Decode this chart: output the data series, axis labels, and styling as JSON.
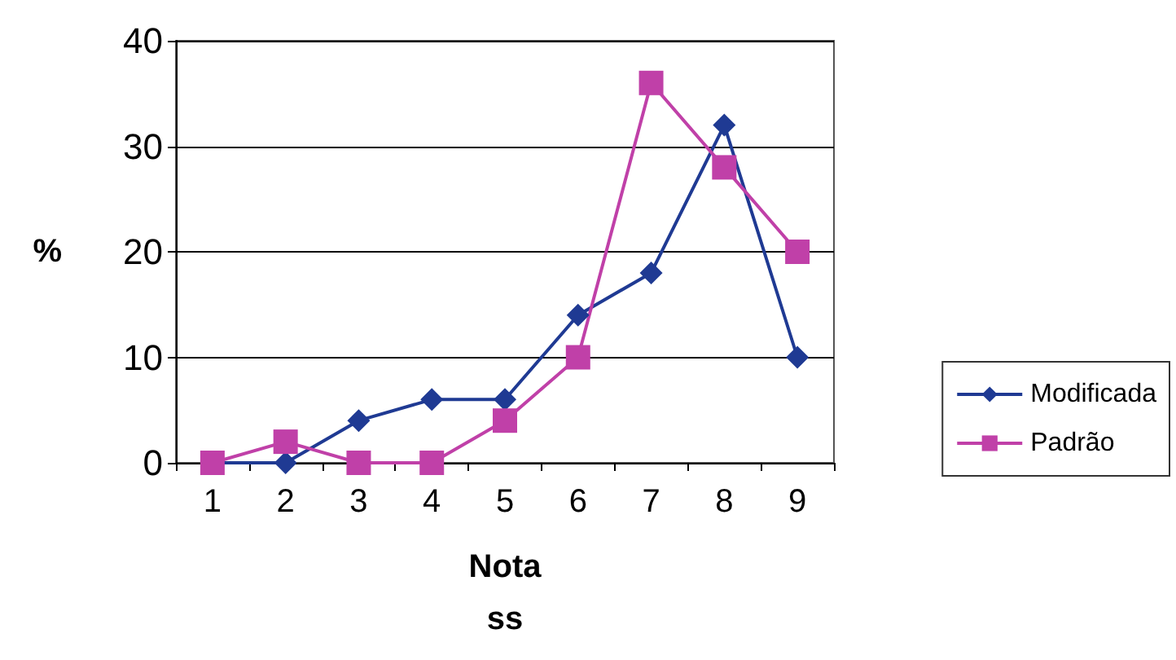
{
  "chart_data": {
    "type": "line",
    "xlabel": "Nota\nss",
    "ylabel": "%",
    "categories": [
      "1",
      "2",
      "3",
      "4",
      "5",
      "6",
      "7",
      "8",
      "9"
    ],
    "series": [
      {
        "name": "Modificada",
        "color": "#1f3a93",
        "marker": "diamond",
        "values": [
          0,
          0,
          4,
          6,
          6,
          14,
          18,
          32,
          10
        ]
      },
      {
        "name": "Padrão",
        "color": "#c040a8",
        "marker": "square",
        "values": [
          0,
          2,
          0,
          0,
          4,
          10,
          36,
          28,
          20
        ]
      }
    ],
    "ylim": [
      0,
      40
    ],
    "yticks": [
      0,
      10,
      20,
      30,
      40
    ],
    "grid": "y",
    "legend": "right",
    "line_style": "solid"
  }
}
